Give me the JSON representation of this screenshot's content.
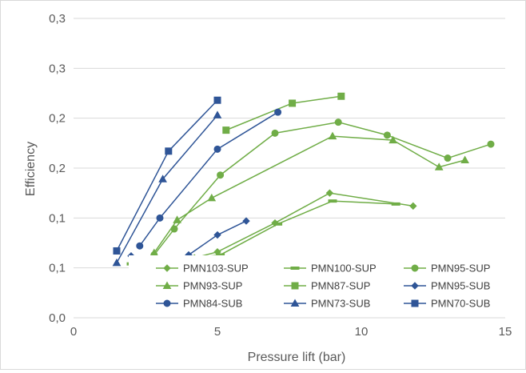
{
  "chart_data": {
    "type": "line",
    "xlabel": "Pressure lift (bar)",
    "ylabel": "Efficiency",
    "x_ticks": [
      "0",
      "5",
      "10",
      "15"
    ],
    "y_ticks": [
      "0,0",
      "0,1",
      "0,1",
      "0,2",
      "0,2",
      "0,3",
      "0,3"
    ],
    "xlim": [
      0,
      15
    ],
    "ylim": [
      0,
      0.3
    ],
    "grid": "horizontal",
    "legend_position": "bottom-right-inside",
    "series": [
      {
        "name": "PMN103-SUP",
        "color": "#70ad47",
        "marker": "diamond",
        "x": [
          4.2,
          5.0,
          7.0,
          8.9,
          11.8
        ],
        "y": [
          0.06,
          0.066,
          0.095,
          0.125,
          0.112
        ]
      },
      {
        "name": "PMN100-SUP",
        "color": "#70ad47",
        "marker": "dash",
        "x": [
          2.0,
          5.1,
          7.1,
          9.0,
          11.2
        ],
        "y": [
          0.054,
          0.063,
          0.094,
          0.117,
          0.114
        ]
      },
      {
        "name": "PMN95-SUP",
        "color": "#70ad47",
        "marker": "circle",
        "x": [
          2.8,
          3.5,
          5.1,
          7.0,
          9.2,
          10.9,
          13.0,
          14.5
        ],
        "y": [
          0.063,
          0.089,
          0.143,
          0.185,
          0.196,
          0.183,
          0.16,
          0.174
        ]
      },
      {
        "name": "PMN93-SUP",
        "color": "#70ad47",
        "marker": "triangle",
        "x": [
          2.8,
          3.6,
          4.8,
          9.0,
          11.1,
          12.7,
          13.6
        ],
        "y": [
          0.065,
          0.098,
          0.12,
          0.182,
          0.178,
          0.151,
          0.158
        ]
      },
      {
        "name": "PMN87-SUP",
        "color": "#70ad47",
        "marker": "square",
        "x": [
          5.3,
          7.6,
          9.3
        ],
        "y": [
          0.188,
          0.215,
          0.222
        ]
      },
      {
        "name": "PMN95-SUB",
        "color": "#2f5597",
        "marker": "diamond",
        "x": [
          2.0,
          3.6,
          4.0,
          5.0,
          6.0
        ],
        "y": [
          0.062,
          0.053,
          0.063,
          0.083,
          0.097
        ]
      },
      {
        "name": "PMN84-SUB",
        "color": "#2f5597",
        "marker": "circle",
        "x": [
          2.3,
          3.0,
          5.0,
          7.1
        ],
        "y": [
          0.072,
          0.1,
          0.169,
          0.206
        ]
      },
      {
        "name": "PMN73-SUB",
        "color": "#2f5597",
        "marker": "triangle",
        "x": [
          1.5,
          3.1,
          5.0
        ],
        "y": [
          0.055,
          0.139,
          0.203
        ]
      },
      {
        "name": "PMN70-SUB",
        "color": "#2f5597",
        "marker": "square",
        "x": [
          1.5,
          3.3,
          5.0
        ],
        "y": [
          0.067,
          0.167,
          0.218
        ]
      }
    ]
  }
}
